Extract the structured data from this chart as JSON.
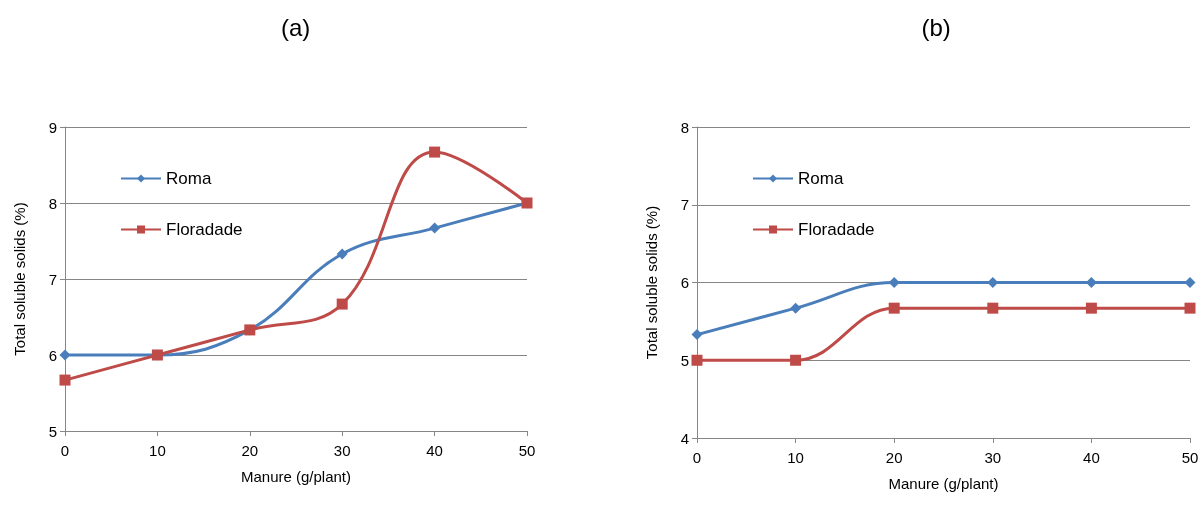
{
  "chart_data": [
    {
      "type": "line",
      "title": "(a)",
      "xlabel": "Manure (g/plant)",
      "ylabel": "Total soluble solids (%)",
      "x": [
        0,
        10,
        20,
        30,
        40,
        50
      ],
      "xlim": [
        0,
        50
      ],
      "xticks": [
        0,
        10,
        20,
        30,
        40,
        50
      ],
      "ylim": [
        5,
        9
      ],
      "yticks": [
        5,
        6,
        7,
        8,
        9
      ],
      "grid": "y",
      "legend": "top left",
      "series": [
        {
          "name": "Roma",
          "color": "#4a7ebb",
          "marker": "diamond",
          "values": [
            6,
            6,
            6.33,
            7.33,
            7.67,
            8
          ]
        },
        {
          "name": "Floradade",
          "color": "#be4b48",
          "marker": "square",
          "values": [
            5.67,
            6,
            6.33,
            6.67,
            8.67,
            8
          ]
        }
      ]
    },
    {
      "type": "line",
      "title": "(b)",
      "xlabel": "Manure (g/plant)",
      "ylabel": "Total soluble solids (%)",
      "x": [
        0,
        10,
        20,
        30,
        40,
        50
      ],
      "xlim": [
        0,
        50
      ],
      "xticks": [
        0,
        10,
        20,
        30,
        40,
        50
      ],
      "ylim": [
        4,
        8
      ],
      "yticks": [
        4,
        5,
        6,
        7,
        8
      ],
      "grid": "y",
      "legend": "top left",
      "series": [
        {
          "name": "Roma",
          "color": "#4a7ebb",
          "marker": "diamond",
          "values": [
            5.33,
            5.67,
            6,
            6,
            6,
            6
          ]
        },
        {
          "name": "Floradade",
          "color": "#be4b48",
          "marker": "square",
          "values": [
            5,
            5,
            5.67,
            5.67,
            5.67,
            5.67
          ]
        }
      ]
    }
  ]
}
